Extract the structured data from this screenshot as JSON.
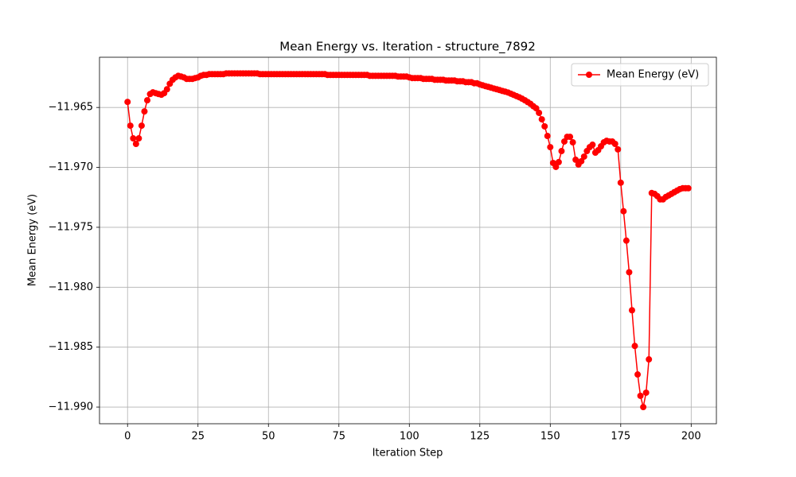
{
  "chart_data": {
    "type": "line",
    "title": "Mean Energy vs. Iteration - structure_7892",
    "x_label": "Iteration Step",
    "y_label": "Mean Energy (eV)",
    "x": [
      0,
      1,
      2,
      3,
      4,
      5,
      6,
      7,
      8,
      9,
      10,
      11,
      12,
      13,
      14,
      15,
      16,
      17,
      18,
      19,
      20,
      21,
      22,
      23,
      24,
      25,
      26,
      27,
      28,
      29,
      30,
      31,
      32,
      33,
      34,
      35,
      36,
      37,
      38,
      39,
      40,
      41,
      42,
      43,
      44,
      45,
      46,
      47,
      48,
      49,
      50,
      51,
      52,
      53,
      54,
      55,
      56,
      57,
      58,
      59,
      60,
      61,
      62,
      63,
      64,
      65,
      66,
      67,
      68,
      69,
      70,
      71,
      72,
      73,
      74,
      75,
      76,
      77,
      78,
      79,
      80,
      81,
      82,
      83,
      84,
      85,
      86,
      87,
      88,
      89,
      90,
      91,
      92,
      93,
      94,
      95,
      96,
      97,
      98,
      99,
      100,
      101,
      102,
      103,
      104,
      105,
      106,
      107,
      108,
      109,
      110,
      111,
      112,
      113,
      114,
      115,
      116,
      117,
      118,
      119,
      120,
      121,
      122,
      123,
      124,
      125,
      126,
      127,
      128,
      129,
      130,
      131,
      132,
      133,
      134,
      135,
      136,
      137,
      138,
      139,
      140,
      141,
      142,
      143,
      144,
      145,
      146,
      147,
      148,
      149,
      150,
      151,
      152,
      153,
      154,
      155,
      156,
      157,
      158,
      159,
      160,
      161,
      162,
      163,
      164,
      165,
      166,
      167,
      168,
      169,
      170,
      171,
      172,
      173,
      174,
      175,
      176,
      177,
      178,
      179,
      180,
      181,
      182,
      183,
      184,
      185,
      186,
      187,
      188,
      189,
      190,
      191,
      192,
      193,
      194,
      195,
      196,
      197,
      198,
      199
    ],
    "series": [
      {
        "name": "Mean Energy (eV)",
        "color": "#ff0000",
        "values": [
          -11.96454,
          -11.96652,
          -11.96758,
          -11.96804,
          -11.96758,
          -11.96652,
          -11.96533,
          -11.9644,
          -11.96388,
          -11.96374,
          -11.96381,
          -11.96388,
          -11.96394,
          -11.96381,
          -11.96348,
          -11.96302,
          -11.96269,
          -11.96249,
          -11.96236,
          -11.96242,
          -11.96249,
          -11.96262,
          -11.96262,
          -11.96262,
          -11.96255,
          -11.96249,
          -11.96236,
          -11.96229,
          -11.96229,
          -11.96222,
          -11.96222,
          -11.96222,
          -11.96222,
          -11.96222,
          -11.96222,
          -11.96216,
          -11.96216,
          -11.96216,
          -11.96216,
          -11.96216,
          -11.96216,
          -11.96216,
          -11.96216,
          -11.96216,
          -11.96216,
          -11.96216,
          -11.96216,
          -11.96222,
          -11.96222,
          -11.96222,
          -11.96222,
          -11.96222,
          -11.96222,
          -11.96222,
          -11.96222,
          -11.96222,
          -11.96222,
          -11.96222,
          -11.96222,
          -11.96222,
          -11.96222,
          -11.96222,
          -11.96222,
          -11.96222,
          -11.96222,
          -11.96222,
          -11.96222,
          -11.96222,
          -11.96222,
          -11.96222,
          -11.96222,
          -11.96229,
          -11.96229,
          -11.96229,
          -11.96229,
          -11.96229,
          -11.96229,
          -11.96229,
          -11.96229,
          -11.96229,
          -11.96229,
          -11.96229,
          -11.96229,
          -11.96229,
          -11.96229,
          -11.96229,
          -11.96236,
          -11.96236,
          -11.96236,
          -11.96236,
          -11.96236,
          -11.96236,
          -11.96236,
          -11.96236,
          -11.96236,
          -11.96236,
          -11.96242,
          -11.96242,
          -11.96242,
          -11.96242,
          -11.96249,
          -11.96255,
          -11.96255,
          -11.96255,
          -11.96255,
          -11.96262,
          -11.96262,
          -11.96262,
          -11.96262,
          -11.96269,
          -11.96269,
          -11.96269,
          -11.96269,
          -11.96275,
          -11.96275,
          -11.96275,
          -11.96275,
          -11.96282,
          -11.96282,
          -11.96282,
          -11.96289,
          -11.96289,
          -11.96289,
          -11.96298,
          -11.96298,
          -11.96308,
          -11.96315,
          -11.96322,
          -11.96328,
          -11.96335,
          -11.96342,
          -11.96348,
          -11.96355,
          -11.96362,
          -11.96368,
          -11.96375,
          -11.96385,
          -11.96395,
          -11.96405,
          -11.96415,
          -11.96427,
          -11.9644,
          -11.96455,
          -11.9647,
          -11.9649,
          -11.96507,
          -11.96545,
          -11.96599,
          -11.96658,
          -11.96738,
          -11.96831,
          -11.96963,
          -11.96996,
          -11.96956,
          -11.96864,
          -11.96784,
          -11.96745,
          -11.96745,
          -11.96791,
          -11.96936,
          -11.96976,
          -11.96949,
          -11.9691,
          -11.96864,
          -11.96831,
          -11.96811,
          -11.96877,
          -11.96857,
          -11.96824,
          -11.96791,
          -11.96778,
          -11.96784,
          -11.96784,
          -11.96804,
          -11.9685,
          -11.97128,
          -11.97366,
          -11.97611,
          -11.97875,
          -11.98192,
          -11.9849,
          -11.98728,
          -11.98906,
          -11.99,
          -11.9888,
          -11.98602,
          -11.97214,
          -11.97221,
          -11.9724,
          -11.97267,
          -11.97267,
          -11.97247,
          -11.97234,
          -11.97221,
          -11.97207,
          -11.97194,
          -11.97181,
          -11.97174,
          -11.97174,
          -11.97174
        ]
      }
    ],
    "xlim": [
      -9.95,
      208.95
    ],
    "ylim": [
      -11.99139,
      -11.96081
    ],
    "xticks": [
      0,
      25,
      50,
      75,
      100,
      125,
      150,
      175,
      200
    ],
    "yticks": [
      {
        "value": -11.99,
        "label": "−11.990"
      },
      {
        "value": -11.985,
        "label": "−11.985"
      },
      {
        "value": -11.98,
        "label": "−11.980"
      },
      {
        "value": -11.975,
        "label": "−11.975"
      },
      {
        "value": -11.97,
        "label": "−11.970"
      },
      {
        "value": -11.965,
        "label": "−11.965"
      }
    ],
    "grid": true,
    "legend": "upper right"
  }
}
